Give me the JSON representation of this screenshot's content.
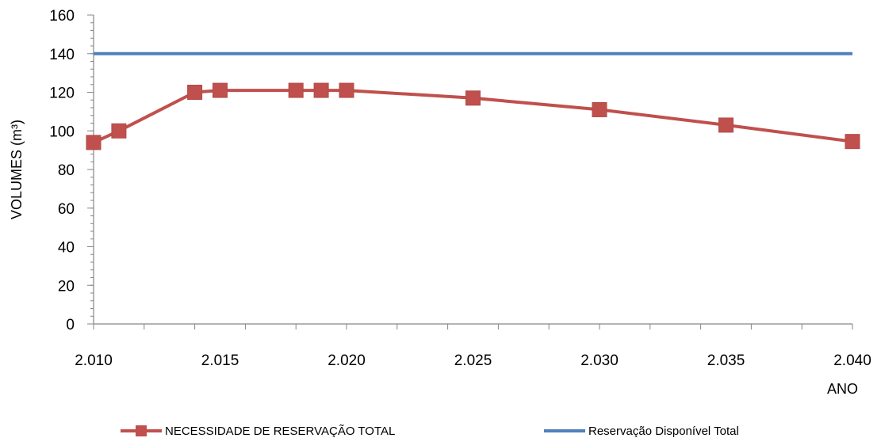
{
  "chart_data": {
    "type": "line",
    "xlabel": "ANO",
    "ylabel": "VOLUMES (m³)",
    "xlim": [
      2010,
      2040
    ],
    "ylim": [
      0,
      160
    ],
    "x_ticks": [
      2010,
      2015,
      2020,
      2025,
      2030,
      2035,
      2040
    ],
    "x_tick_labels": [
      "2.010",
      "2.015",
      "2.020",
      "2.025",
      "2.030",
      "2.035",
      "2.040"
    ],
    "y_ticks": [
      0,
      20,
      40,
      60,
      80,
      100,
      120,
      140,
      160
    ],
    "y_tick_labels": [
      "0",
      "20",
      "40",
      "60",
      "80",
      "100",
      "120",
      "140",
      "160"
    ],
    "grid": false,
    "legend_position": "bottom",
    "series": [
      {
        "name": "NECESSIDADE DE RESERVAÇÃO TOTAL",
        "color": "#c0504d",
        "marker": "square",
        "x": [
          2010,
          2011,
          2014,
          2015,
          2018,
          2019,
          2020,
          2025,
          2030,
          2035,
          2040
        ],
        "y": [
          94,
          100,
          120,
          121,
          121,
          121,
          121,
          117,
          111,
          103,
          94.5
        ]
      },
      {
        "name": "Reservação Disponível Total",
        "color": "#4f81bd",
        "marker": "none",
        "x": [
          2010,
          2040
        ],
        "y": [
          140,
          140
        ]
      }
    ]
  }
}
